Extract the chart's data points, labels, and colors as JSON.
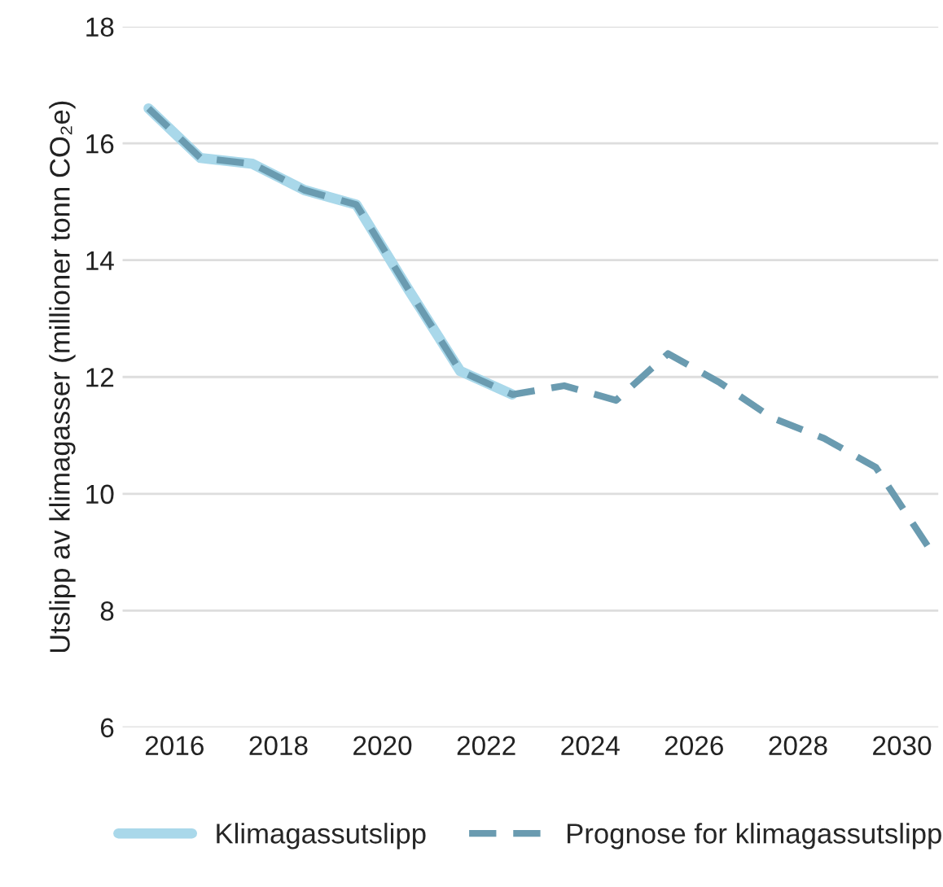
{
  "chart_data": {
    "type": "line",
    "ylabel": "Utslipp av klimagasser (millioner tonn CO₂e)",
    "x": [
      2015,
      2016,
      2017,
      2018,
      2019,
      2020,
      2021,
      2022,
      2023,
      2024,
      2025,
      2026,
      2027,
      2028,
      2029,
      2030
    ],
    "series": [
      {
        "name": "Klimagassutslipp",
        "color": "#a9d8ea",
        "line_style": "solid",
        "values": [
          16.6,
          15.75,
          15.65,
          15.2,
          14.95,
          13.5,
          12.1,
          11.7,
          null,
          null,
          null,
          null,
          null,
          null,
          null,
          null
        ]
      },
      {
        "name": "Prognose for klimagassutslipp",
        "color": "#6a9bb0",
        "line_style": "dashed",
        "values": [
          16.6,
          15.75,
          15.65,
          15.2,
          14.95,
          13.5,
          12.1,
          11.7,
          11.85,
          11.6,
          12.4,
          11.9,
          11.3,
          10.95,
          10.45,
          9.1
        ]
      }
    ],
    "xlim": [
      2014.5,
      2030.2
    ],
    "xticks": [
      {
        "value": 2015.5,
        "label": "2016"
      },
      {
        "value": 2017.5,
        "label": "2018"
      },
      {
        "value": 2019.5,
        "label": "2020"
      },
      {
        "value": 2021.5,
        "label": "2022"
      },
      {
        "value": 2023.5,
        "label": "2024"
      },
      {
        "value": 2025.5,
        "label": "2026"
      },
      {
        "value": 2027.5,
        "label": "2028"
      },
      {
        "value": 2029.5,
        "label": "2030"
      }
    ],
    "ylim": [
      6,
      18
    ],
    "yticks": [
      6,
      8,
      10,
      12,
      14,
      16,
      18
    ],
    "grid": "y",
    "legend": "bottom"
  }
}
